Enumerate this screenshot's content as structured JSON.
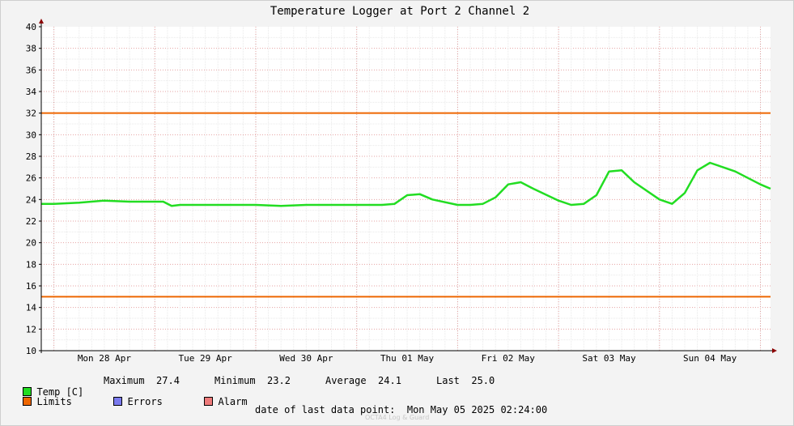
{
  "chart_data": {
    "type": "line",
    "title": "Temperature Logger at Port 2 Channel 2",
    "ylim": [
      10,
      40
    ],
    "y_ticks": [
      10,
      12,
      14,
      16,
      18,
      20,
      22,
      24,
      26,
      28,
      30,
      32,
      34,
      36,
      38,
      40
    ],
    "x_day_labels": [
      "Mon 28 Apr",
      "Tue 29 Apr",
      "Wed 30 Apr",
      "Thu 01 May",
      "Fri 02 May",
      "Sat 03 May",
      "Sun 04 May"
    ],
    "x_start": "2025-04-27T21:00",
    "x_end": "2025-05-05T02:24",
    "grid": true,
    "limits": [
      32,
      15
    ],
    "series": [
      {
        "name": "Temp [C]",
        "color": "#22dd22",
        "x": [
          "2025-04-27T21:00",
          "2025-04-28T00:00",
          "2025-04-28T06:00",
          "2025-04-28T12:00",
          "2025-04-28T18:00",
          "2025-04-29T00:00",
          "2025-04-29T02:00",
          "2025-04-29T04:00",
          "2025-04-29T06:00",
          "2025-04-29T12:00",
          "2025-04-29T18:00",
          "2025-04-30T00:00",
          "2025-04-30T06:00",
          "2025-04-30T12:00",
          "2025-04-30T18:00",
          "2025-05-01T00:00",
          "2025-05-01T06:00",
          "2025-05-01T09:00",
          "2025-05-01T12:00",
          "2025-05-01T15:00",
          "2025-05-01T18:00",
          "2025-05-02T00:00",
          "2025-05-02T03:00",
          "2025-05-02T06:00",
          "2025-05-02T09:00",
          "2025-05-02T12:00",
          "2025-05-02T15:00",
          "2025-05-02T18:00",
          "2025-05-03T00:00",
          "2025-05-03T03:00",
          "2025-05-03T06:00",
          "2025-05-03T09:00",
          "2025-05-03T12:00",
          "2025-05-03T15:00",
          "2025-05-03T18:00",
          "2025-05-04T00:00",
          "2025-05-04T03:00",
          "2025-05-04T06:00",
          "2025-05-04T09:00",
          "2025-05-04T12:00",
          "2025-05-04T15:00",
          "2025-05-04T18:00",
          "2025-05-05T00:00",
          "2025-05-05T02:24"
        ],
        "values": [
          23.6,
          23.6,
          23.7,
          23.9,
          23.8,
          23.8,
          23.8,
          23.4,
          23.5,
          23.5,
          23.5,
          23.5,
          23.4,
          23.5,
          23.5,
          23.5,
          23.5,
          23.6,
          24.4,
          24.5,
          24.0,
          23.5,
          23.5,
          23.6,
          24.2,
          25.4,
          25.6,
          25.0,
          23.9,
          23.5,
          23.6,
          24.4,
          26.6,
          26.7,
          25.6,
          24.0,
          23.6,
          24.6,
          26.7,
          27.4,
          27.0,
          26.6,
          25.4,
          25.0
        ]
      }
    ]
  },
  "legend": {
    "temp_label": "Temp [C]",
    "max_label": "Maximum",
    "max_value": "27.4",
    "min_label": "Minimum",
    "min_value": "23.2",
    "avg_label": "Average",
    "avg_value": "24.1",
    "last_label": "Last",
    "last_value": "25.0",
    "limits_label": "Limits",
    "errors_label": "Errors",
    "alarm_label": "Alarm",
    "temp_color": "#22dd22",
    "limits_color": "#ee6600",
    "errors_color": "#7a7aee",
    "alarm_color": "#ee7a7a"
  },
  "footer": {
    "last_point_label": "date of last data point:",
    "last_point_value": "Mon May 05 2025 02:24:00",
    "brand": "OCTA4 Log & Guard"
  }
}
